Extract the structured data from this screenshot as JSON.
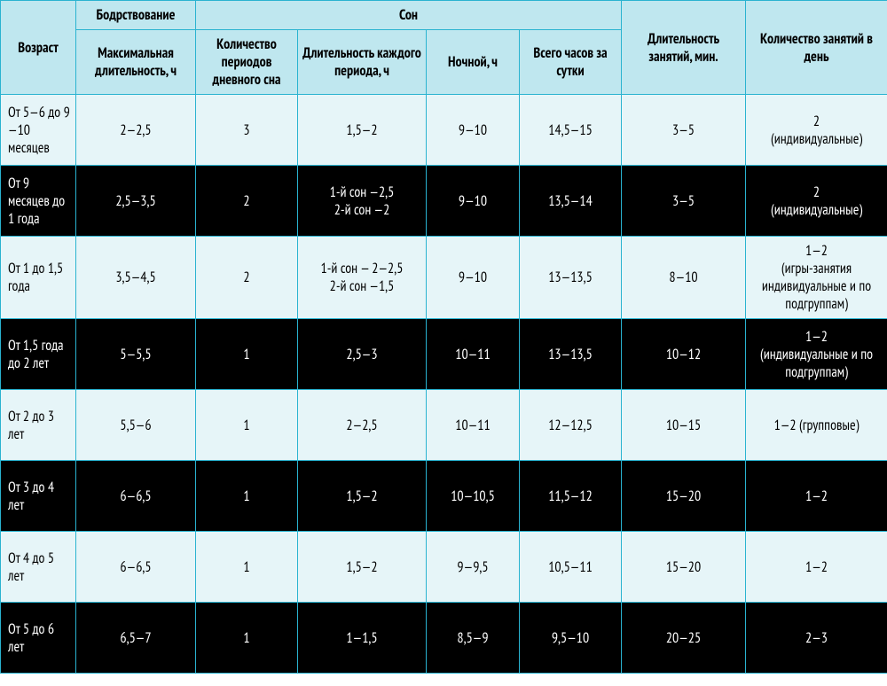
{
  "table": {
    "type": "table",
    "border_color": "#2ab3d0",
    "header_bg": "#bfe7ef",
    "row_light_bg": "#e6f5f8",
    "row_dark_bg": "#000000",
    "row_dark_fg": "#ffffff",
    "font_size_header": 16,
    "font_size_body": 16,
    "headers": {
      "age": "Возраст",
      "wake_group": "Бодрствование",
      "sleep_group": "Сон",
      "wake_max": "Максимальная длительность, ч",
      "nap_count": "Количество периодов дневного сна",
      "nap_duration": "Длительность каждого периода, ч",
      "night": "Ночной, ч",
      "total": "Всего часов за сутки",
      "lesson_duration": "Длительность занятий, мин.",
      "lesson_count": "Количество занятий в день"
    },
    "rows": [
      {
        "variant": "light",
        "age": "От 5—6 до 9—10 месяцев",
        "wake_max": "2—2,5",
        "nap_count": "3",
        "nap_duration": "1,5—2",
        "night": "9—10",
        "total": "14,5—15",
        "lesson_duration": "3—5",
        "lesson_count": "2\n(индивидуальные)"
      },
      {
        "variant": "dark",
        "age": "От 9 месяцев до 1 года",
        "wake_max": "2,5—3,5",
        "nap_count": "2",
        "nap_duration": "1-й сон —2,5\n2-й сон —2",
        "night": "9—10",
        "total": "13,5—14",
        "lesson_duration": "3—5",
        "lesson_count": "2\n(индивидуальные)"
      },
      {
        "variant": "light",
        "age": "От 1 до 1,5 года",
        "wake_max": "3,5—4,5",
        "nap_count": "2",
        "nap_duration": "1-й сон — 2—2,5\n2-й сон —1,5",
        "night": "9—10",
        "total": "13—13,5",
        "lesson_duration": "8—10",
        "lesson_count": "1—2\n(игры-занятия индивидуальные и по подгруппам)"
      },
      {
        "variant": "dark",
        "age": "От 1,5 года до 2 лет",
        "wake_max": "5—5,5",
        "nap_count": "1",
        "nap_duration": "2,5—3",
        "night": "10—11",
        "total": "13—13,5",
        "lesson_duration": "10—12",
        "lesson_count": "1—2\n(индивидуальные и по подгруппам)"
      },
      {
        "variant": "light",
        "age": "От 2 до 3 лет",
        "wake_max": "5,5—6",
        "nap_count": "1",
        "nap_duration": "2—2,5",
        "night": "10—11",
        "total": "12—12,5",
        "lesson_duration": "10—15",
        "lesson_count": "1—2 (групповые)"
      },
      {
        "variant": "dark",
        "age": "От 3 до 4 лет",
        "wake_max": "6—6,5",
        "nap_count": "1",
        "nap_duration": "1,5—2",
        "night": "10—10,5",
        "total": "11,5—12",
        "lesson_duration": "15—20",
        "lesson_count": "1—2"
      },
      {
        "variant": "light",
        "age": "От 4 до 5 лет",
        "wake_max": "6—6,5",
        "nap_count": "1",
        "nap_duration": "1,5—2",
        "night": "9—9,5",
        "total": "10,5—11",
        "lesson_duration": "15—20",
        "lesson_count": "1—2"
      },
      {
        "variant": "dark",
        "age": "От 5 до 6 лет",
        "wake_max": "6,5—7",
        "nap_count": "1",
        "nap_duration": "1—1,5",
        "night": "8,5—9",
        "total": "9,5—10",
        "lesson_duration": "20—25",
        "lesson_count": "2—3"
      }
    ]
  }
}
